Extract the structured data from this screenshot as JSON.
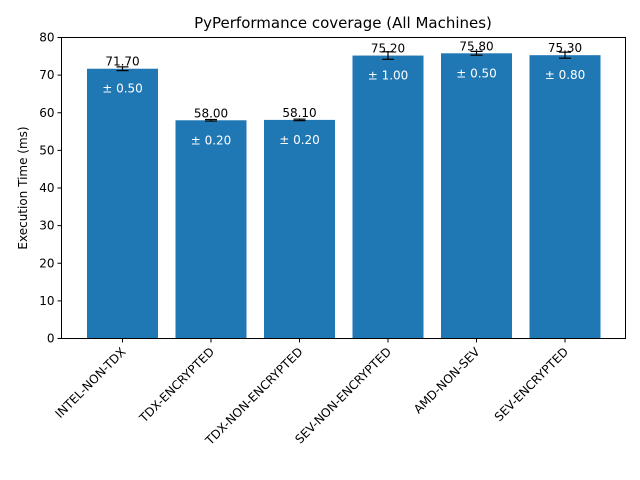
{
  "chart_data": {
    "type": "bar",
    "title": "PyPerformance coverage (All Machines)",
    "xlabel": "",
    "ylabel": "Execution Time (ms)",
    "ylim": [
      0,
      80
    ],
    "yticks": [
      0,
      10,
      20,
      30,
      40,
      50,
      60,
      70,
      80
    ],
    "categories": [
      "INTEL-NON-TDX",
      "TDX-ENCRYPTED",
      "TDX-NON-ENCRYPTED",
      "SEV-NON-ENCRYPTED",
      "AMD-NON-SEV",
      "SEV-ENCRYPTED"
    ],
    "values": [
      71.7,
      58.0,
      58.1,
      75.2,
      75.8,
      75.3
    ],
    "errors": [
      0.5,
      0.2,
      0.2,
      1.0,
      0.5,
      0.8
    ],
    "value_labels": [
      "71.70",
      "58.00",
      "58.10",
      "75.20",
      "75.80",
      "75.30"
    ],
    "error_labels": [
      "± 0.50",
      "± 0.20",
      "± 0.20",
      "± 1.00",
      "± 0.50",
      "± 0.80"
    ],
    "bar_color": "#1f77b4",
    "grid": false,
    "legend": "none"
  }
}
